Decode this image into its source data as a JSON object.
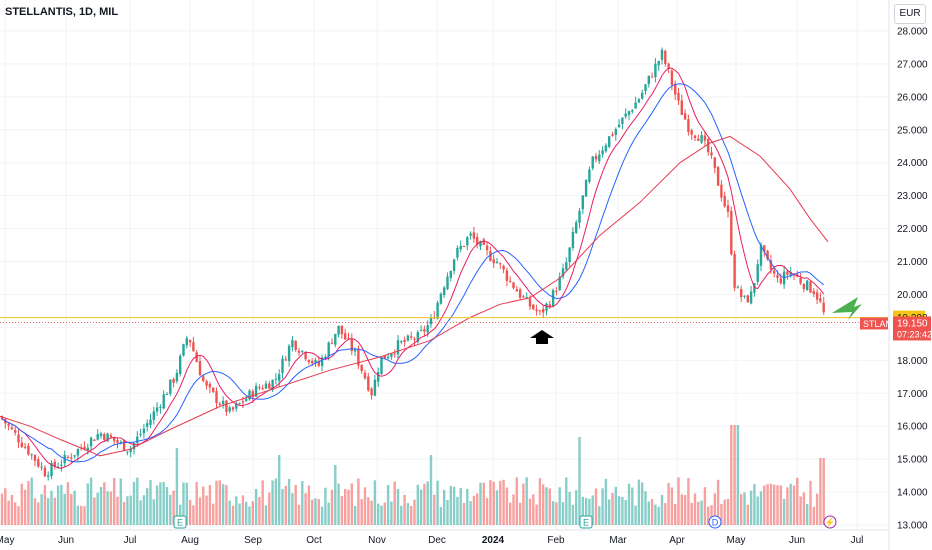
{
  "header": {
    "symbol_line": "STELLANTIS, 1D, MIL",
    "currency": "EUR"
  },
  "price_axis": {
    "ticks": [
      "28.000",
      "27.000",
      "26.000",
      "25.000",
      "24.000",
      "23.000",
      "22.000",
      "21.000",
      "20.000",
      "19.000",
      "18.000",
      "17.000",
      "16.000",
      "15.000",
      "14.000",
      "13.000"
    ]
  },
  "time_axis": {
    "ticks": [
      {
        "label": "May",
        "bold": false
      },
      {
        "label": "Jun",
        "bold": false
      },
      {
        "label": "Jul",
        "bold": false
      },
      {
        "label": "Aug",
        "bold": false
      },
      {
        "label": "Sep",
        "bold": false
      },
      {
        "label": "Oct",
        "bold": false
      },
      {
        "label": "Nov",
        "bold": false
      },
      {
        "label": "Dec",
        "bold": false
      },
      {
        "label": "2024",
        "bold": true
      },
      {
        "label": "Feb",
        "bold": false
      },
      {
        "label": "Mar",
        "bold": false
      },
      {
        "label": "Apr",
        "bold": false
      },
      {
        "label": "May",
        "bold": false
      },
      {
        "label": "Jun",
        "bold": false
      },
      {
        "label": "Jul",
        "bold": false
      }
    ]
  },
  "price_tags": {
    "level": {
      "value": "19.298",
      "color": "#f5c518"
    },
    "last": {
      "symbol": "STLAM",
      "value": "19.150",
      "countdown": "07:23:42",
      "color": "#ef5350"
    }
  },
  "event_markers": [
    {
      "letter": "E",
      "color": "#26a69a"
    },
    {
      "letter": "E",
      "color": "#26a69a"
    },
    {
      "letter": "D",
      "color": "#2962ff"
    },
    {
      "letter": "⚡",
      "color": "#9c27b0"
    }
  ],
  "chart_data": {
    "type": "line",
    "description_series": "daily candlesticks with three moving averages and volume",
    "ylim": [
      12.8,
      28.4
    ],
    "horizontal_level": 19.298,
    "last_price": 19.15,
    "colors": {
      "up": "#26a69a",
      "down": "#ef5350",
      "ma_fast": "#e91e63",
      "ma_mid": "#2962ff",
      "ma_slow": "#e53950",
      "level": "#f5c518"
    },
    "key_prices": [
      {
        "x": "May",
        "y": 16.3
      },
      {
        "x": "Jun",
        "y": 14.6
      },
      {
        "x": "Jul",
        "y": 15.3
      },
      {
        "x": "Aug",
        "y": 18.8
      },
      {
        "x": "Aug",
        "y": 16.4
      },
      {
        "x": "Sep",
        "y": 17.2
      },
      {
        "x": "Oct",
        "y": 19.0
      },
      {
        "x": "Nov",
        "y": 17.0
      },
      {
        "x": "Nov",
        "y": 18.2
      },
      {
        "x": "Dec",
        "y": 18.8
      },
      {
        "x": "Dec",
        "y": 21.8
      },
      {
        "x": "2024",
        "y": 21.3
      },
      {
        "x": "Feb",
        "y": 19.5
      },
      {
        "x": "Feb",
        "y": 23.0
      },
      {
        "x": "Mar",
        "y": 25.8
      },
      {
        "x": "Mar",
        "y": 27.3
      },
      {
        "x": "Apr",
        "y": 26.2
      },
      {
        "x": "Apr",
        "y": 24.2
      },
      {
        "x": "May",
        "y": 19.8
      },
      {
        "x": "May",
        "y": 21.5
      },
      {
        "x": "Jun",
        "y": 20.3
      },
      {
        "x": "Jun",
        "y": 19.15
      }
    ]
  }
}
